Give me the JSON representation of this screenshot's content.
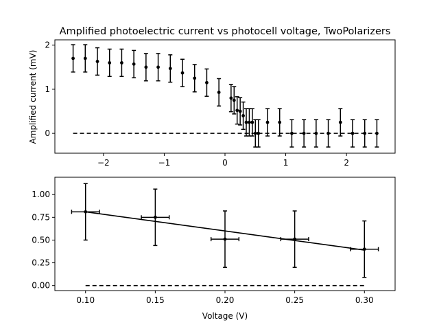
{
  "chart_data": [
    {
      "type": "scatter",
      "title": "Amplified photoelectric current vs photocell voltage, TwoPolarizers",
      "xlabel": "",
      "ylabel": "Amplified current (mV)",
      "xlim": [
        -2.8,
        2.8
      ],
      "ylim": [
        -0.45,
        2.12
      ],
      "xticks": [
        -2,
        -1,
        0,
        1,
        2
      ],
      "yticks": [
        0,
        1,
        2
      ],
      "xtick_labels": [
        "−2",
        "−1",
        "0",
        "1",
        "2"
      ],
      "ytick_labels": [
        "0",
        "1",
        "2"
      ],
      "grid": false,
      "points": {
        "x": [
          -2.5,
          -2.3,
          -2.1,
          -1.9,
          -1.7,
          -1.5,
          -1.3,
          -1.1,
          -0.9,
          -0.7,
          -0.5,
          -0.3,
          -0.1,
          0.1,
          0.15,
          0.2,
          0.25,
          0.3,
          0.35,
          0.4,
          0.45,
          0.5,
          0.55,
          0.7,
          0.9,
          1.1,
          1.3,
          1.5,
          1.7,
          1.9,
          2.1,
          2.3,
          2.5
        ],
        "y": [
          1.7,
          1.7,
          1.63,
          1.6,
          1.6,
          1.57,
          1.5,
          1.5,
          1.47,
          1.37,
          1.25,
          1.15,
          0.93,
          0.8,
          0.75,
          0.52,
          0.5,
          0.4,
          0.25,
          0.25,
          0.25,
          0.0,
          0.0,
          0.25,
          0.25,
          0.0,
          0.0,
          0.0,
          0.0,
          0.25,
          0.0,
          0.0,
          0.0
        ],
        "yerr": 0.31,
        "color": "#000000"
      },
      "reference_line": {
        "x": [
          -2.5,
          2.5
        ],
        "y": [
          0,
          0
        ],
        "style": "dashed",
        "color": "#000000"
      }
    },
    {
      "type": "scatter",
      "title": "",
      "xlabel": "Voltage (V)",
      "ylabel": "",
      "xlim": [
        0.078,
        0.322
      ],
      "ylim": [
        -0.055,
        1.19
      ],
      "xticks": [
        0.1,
        0.15,
        0.2,
        0.25,
        0.3
      ],
      "yticks": [
        0,
        0.25,
        0.5,
        0.75,
        1.0
      ],
      "xtick_labels": [
        "0.10",
        "0.15",
        "0.20",
        "0.25",
        "0.30"
      ],
      "ytick_labels": [
        "0.00",
        "0.25",
        "0.50",
        "0.75",
        "1.00"
      ],
      "grid": false,
      "points": {
        "x": [
          0.1,
          0.15,
          0.2,
          0.25,
          0.3
        ],
        "y": [
          0.81,
          0.75,
          0.51,
          0.51,
          0.4
        ],
        "yerr": 0.31,
        "xerr": 0.01,
        "color": "#000000"
      },
      "fit_line": {
        "x": [
          0.1,
          0.3
        ],
        "y": [
          0.81,
          0.39
        ],
        "style": "solid",
        "color": "#000000"
      },
      "reference_line": {
        "x": [
          0.1,
          0.3
        ],
        "y": [
          0,
          0
        ],
        "style": "dashed",
        "color": "#000000"
      }
    }
  ]
}
